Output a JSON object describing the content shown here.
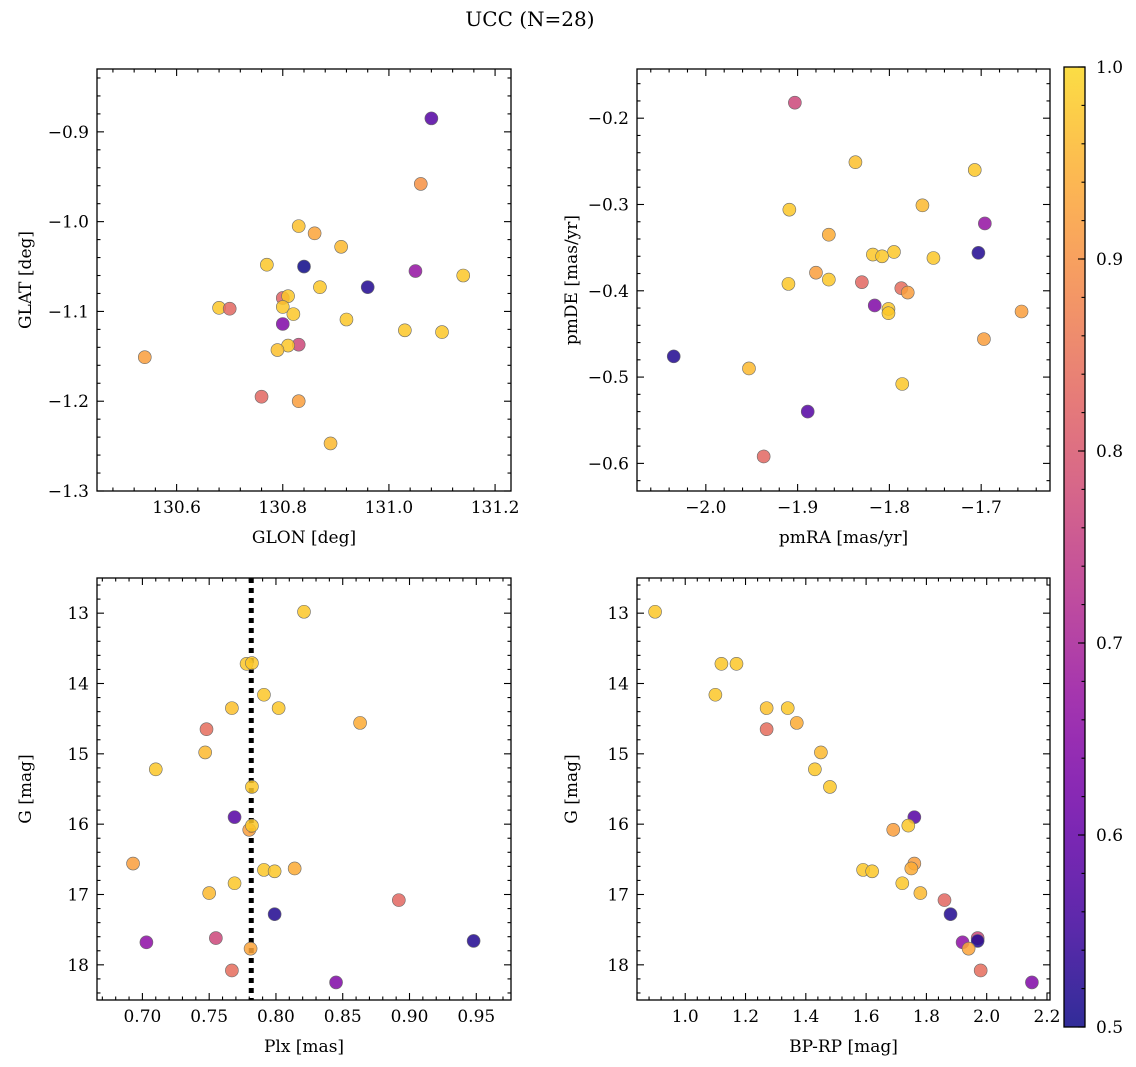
{
  "figure": {
    "title": "UCC (N=28)"
  },
  "colorbar": {
    "range": [
      0.5,
      1.0
    ],
    "ticks": [
      0.5,
      0.6,
      0.7,
      0.8,
      0.9,
      1.0
    ],
    "tick_labels": [
      "0.5",
      "0.6",
      "0.7",
      "0.8",
      "0.9",
      "1.0"
    ],
    "colormap": "plasma",
    "colormap_range": [
      0.0,
      0.92
    ]
  },
  "chart_data": [
    {
      "type": "scatter",
      "id": "glon-glat",
      "xlabel": "GLON [deg]",
      "ylabel": "GLAT [deg]",
      "xlim": [
        130.45,
        131.23
      ],
      "ylim": [
        -1.3,
        -0.83
      ],
      "y_inverted": false,
      "xticks": [
        130.6,
        130.8,
        131.0,
        131.2
      ],
      "xtick_labels": [
        "130.6",
        "130.8",
        "131.0",
        "131.2"
      ],
      "yticks": [
        -0.9,
        -1.0,
        -1.1,
        -1.2,
        -1.3
      ],
      "ytick_labels": [
        "−0.9",
        "−1.0",
        "−1.1",
        "−1.2",
        "−1.3"
      ],
      "points": [
        {
          "x": 131.08,
          "y": -0.885,
          "c": 0.58
        },
        {
          "x": 131.06,
          "y": -0.958,
          "c": 0.9
        },
        {
          "x": 130.83,
          "y": -1.005,
          "c": 0.97
        },
        {
          "x": 130.86,
          "y": -1.013,
          "c": 0.93
        },
        {
          "x": 130.91,
          "y": -1.028,
          "c": 0.96
        },
        {
          "x": 130.77,
          "y": -1.048,
          "c": 0.98
        },
        {
          "x": 130.84,
          "y": -1.05,
          "c": 0.5
        },
        {
          "x": 131.05,
          "y": -1.055,
          "c": 0.67
        },
        {
          "x": 131.14,
          "y": -1.06,
          "c": 0.98
        },
        {
          "x": 130.96,
          "y": -1.073,
          "c": 0.52
        },
        {
          "x": 130.87,
          "y": -1.073,
          "c": 0.98
        },
        {
          "x": 130.8,
          "y": -1.085,
          "c": 0.82
        },
        {
          "x": 130.81,
          "y": -1.083,
          "c": 0.98
        },
        {
          "x": 130.68,
          "y": -1.096,
          "c": 0.98
        },
        {
          "x": 130.7,
          "y": -1.097,
          "c": 0.83
        },
        {
          "x": 130.8,
          "y": -1.095,
          "c": 0.98
        },
        {
          "x": 130.82,
          "y": -1.103,
          "c": 0.98
        },
        {
          "x": 130.92,
          "y": -1.109,
          "c": 0.98
        },
        {
          "x": 130.8,
          "y": -1.114,
          "c": 0.64
        },
        {
          "x": 131.03,
          "y": -1.121,
          "c": 0.98
        },
        {
          "x": 131.1,
          "y": -1.123,
          "c": 0.98
        },
        {
          "x": 130.83,
          "y": -1.137,
          "c": 0.77
        },
        {
          "x": 130.81,
          "y": -1.138,
          "c": 0.98
        },
        {
          "x": 130.79,
          "y": -1.143,
          "c": 0.97
        },
        {
          "x": 130.54,
          "y": -1.151,
          "c": 0.92
        },
        {
          "x": 130.76,
          "y": -1.195,
          "c": 0.83
        },
        {
          "x": 130.83,
          "y": -1.2,
          "c": 0.92
        },
        {
          "x": 130.89,
          "y": -1.247,
          "c": 0.96
        }
      ]
    },
    {
      "type": "scatter",
      "id": "pmra-pmde",
      "xlabel": "pmRA [mas/yr]",
      "ylabel": "pmDE [mas/yr]",
      "xlim": [
        -2.075,
        -1.625
      ],
      "ylim": [
        -0.632,
        -0.143
      ],
      "y_inverted": false,
      "xticks": [
        -2.0,
        -1.9,
        -1.8,
        -1.7
      ],
      "xtick_labels": [
        "−2.0",
        "−1.9",
        "−1.8",
        "−1.7"
      ],
      "yticks": [
        -0.2,
        -0.3,
        -0.4,
        -0.5,
        -0.6
      ],
      "ytick_labels": [
        "−0.2",
        "−0.3",
        "−0.4",
        "−0.5",
        "−0.6"
      ],
      "points": [
        {
          "x": -1.903,
          "y": -0.182,
          "c": 0.77
        },
        {
          "x": -1.837,
          "y": -0.251,
          "c": 0.97
        },
        {
          "x": -1.707,
          "y": -0.26,
          "c": 0.98
        },
        {
          "x": -1.764,
          "y": -0.301,
          "c": 0.96
        },
        {
          "x": -1.909,
          "y": -0.306,
          "c": 0.98
        },
        {
          "x": -1.696,
          "y": -0.322,
          "c": 0.67
        },
        {
          "x": -1.866,
          "y": -0.335,
          "c": 0.94
        },
        {
          "x": -1.795,
          "y": -0.355,
          "c": 0.98
        },
        {
          "x": -1.703,
          "y": -0.356,
          "c": 0.52
        },
        {
          "x": -1.818,
          "y": -0.358,
          "c": 0.98
        },
        {
          "x": -1.808,
          "y": -0.36,
          "c": 0.98
        },
        {
          "x": -1.752,
          "y": -0.362,
          "c": 0.98
        },
        {
          "x": -1.88,
          "y": -0.379,
          "c": 0.92
        },
        {
          "x": -1.866,
          "y": -0.387,
          "c": 0.98
        },
        {
          "x": -1.83,
          "y": -0.39,
          "c": 0.83
        },
        {
          "x": -1.91,
          "y": -0.392,
          "c": 0.98
        },
        {
          "x": -1.787,
          "y": -0.397,
          "c": 0.84
        },
        {
          "x": -1.78,
          "y": -0.402,
          "c": 0.92
        },
        {
          "x": -1.816,
          "y": -0.417,
          "c": 0.64
        },
        {
          "x": -1.801,
          "y": -0.421,
          "c": 0.98
        },
        {
          "x": -1.801,
          "y": -0.426,
          "c": 0.98
        },
        {
          "x": -1.656,
          "y": -0.424,
          "c": 0.92
        },
        {
          "x": -1.697,
          "y": -0.456,
          "c": 0.92
        },
        {
          "x": -2.035,
          "y": -0.476,
          "c": 0.52
        },
        {
          "x": -1.953,
          "y": -0.49,
          "c": 0.96
        },
        {
          "x": -1.786,
          "y": -0.508,
          "c": 0.98
        },
        {
          "x": -1.889,
          "y": -0.54,
          "c": 0.58
        },
        {
          "x": -1.937,
          "y": -0.592,
          "c": 0.83
        }
      ]
    },
    {
      "type": "scatter",
      "id": "plx-g",
      "xlabel": "Plx [mas]",
      "ylabel": "G [mag]",
      "xlim": [
        0.666,
        0.976
      ],
      "ylim": [
        12.5,
        18.5
      ],
      "y_inverted": true,
      "xticks": [
        0.7,
        0.75,
        0.8,
        0.85,
        0.9,
        0.95
      ],
      "xtick_labels": [
        "0.70",
        "0.75",
        "0.80",
        "0.85",
        "0.90",
        "0.95"
      ],
      "yticks": [
        13,
        14,
        15,
        16,
        17,
        18
      ],
      "ytick_labels": [
        "13",
        "14",
        "15",
        "16",
        "17",
        "18"
      ],
      "vline": 0.7815,
      "points": [
        {
          "x": 0.821,
          "y": 12.98,
          "c": 0.98
        },
        {
          "x": 0.778,
          "y": 13.72,
          "c": 0.98
        },
        {
          "x": 0.782,
          "y": 13.71,
          "c": 0.98
        },
        {
          "x": 0.791,
          "y": 14.16,
          "c": 0.98
        },
        {
          "x": 0.767,
          "y": 14.35,
          "c": 0.97
        },
        {
          "x": 0.802,
          "y": 14.35,
          "c": 0.98
        },
        {
          "x": 0.863,
          "y": 14.56,
          "c": 0.94
        },
        {
          "x": 0.748,
          "y": 14.65,
          "c": 0.84
        },
        {
          "x": 0.747,
          "y": 14.98,
          "c": 0.96
        },
        {
          "x": 0.71,
          "y": 15.22,
          "c": 0.98
        },
        {
          "x": 0.782,
          "y": 15.47,
          "c": 0.98
        },
        {
          "x": 0.769,
          "y": 15.9,
          "c": 0.58
        },
        {
          "x": 0.78,
          "y": 16.08,
          "c": 0.92
        },
        {
          "x": 0.782,
          "y": 16.02,
          "c": 0.98
        },
        {
          "x": 0.693,
          "y": 16.56,
          "c": 0.92
        },
        {
          "x": 0.791,
          "y": 16.65,
          "c": 0.98
        },
        {
          "x": 0.799,
          "y": 16.67,
          "c": 0.98
        },
        {
          "x": 0.814,
          "y": 16.63,
          "c": 0.94
        },
        {
          "x": 0.769,
          "y": 16.84,
          "c": 0.98
        },
        {
          "x": 0.75,
          "y": 16.98,
          "c": 0.96
        },
        {
          "x": 0.892,
          "y": 17.08,
          "c": 0.83
        },
        {
          "x": 0.799,
          "y": 17.28,
          "c": 0.52
        },
        {
          "x": 0.755,
          "y": 17.62,
          "c": 0.77
        },
        {
          "x": 0.703,
          "y": 17.68,
          "c": 0.66
        },
        {
          "x": 0.948,
          "y": 17.66,
          "c": 0.52
        },
        {
          "x": 0.781,
          "y": 17.77,
          "c": 0.93
        },
        {
          "x": 0.767,
          "y": 18.08,
          "c": 0.84
        },
        {
          "x": 0.845,
          "y": 18.25,
          "c": 0.64
        }
      ]
    },
    {
      "type": "scatter",
      "id": "bprp-g",
      "xlabel": "BP-RP [mag]",
      "ylabel": "G [mag]",
      "xlim": [
        0.84,
        2.21
      ],
      "ylim": [
        12.5,
        18.5
      ],
      "y_inverted": true,
      "xticks": [
        1.0,
        1.2,
        1.4,
        1.6,
        1.8,
        2.0,
        2.2
      ],
      "xtick_labels": [
        "1.0",
        "1.2",
        "1.4",
        "1.6",
        "1.8",
        "2.0",
        "2.2"
      ],
      "yticks": [
        13,
        14,
        15,
        16,
        17,
        18
      ],
      "ytick_labels": [
        "13",
        "14",
        "15",
        "16",
        "17",
        "18"
      ],
      "points": [
        {
          "x": 0.9,
          "y": 12.98,
          "c": 0.98
        },
        {
          "x": 1.12,
          "y": 13.72,
          "c": 0.98
        },
        {
          "x": 1.17,
          "y": 13.72,
          "c": 0.98
        },
        {
          "x": 1.1,
          "y": 14.16,
          "c": 0.98
        },
        {
          "x": 1.27,
          "y": 14.35,
          "c": 0.97
        },
        {
          "x": 1.34,
          "y": 14.35,
          "c": 0.98
        },
        {
          "x": 1.37,
          "y": 14.56,
          "c": 0.94
        },
        {
          "x": 1.27,
          "y": 14.65,
          "c": 0.84
        },
        {
          "x": 1.45,
          "y": 14.98,
          "c": 0.96
        },
        {
          "x": 1.43,
          "y": 15.22,
          "c": 0.98
        },
        {
          "x": 1.48,
          "y": 15.47,
          "c": 0.98
        },
        {
          "x": 1.76,
          "y": 15.9,
          "c": 0.58
        },
        {
          "x": 1.69,
          "y": 16.08,
          "c": 0.92
        },
        {
          "x": 1.74,
          "y": 16.02,
          "c": 0.98
        },
        {
          "x": 1.76,
          "y": 16.56,
          "c": 0.92
        },
        {
          "x": 1.75,
          "y": 16.63,
          "c": 0.94
        },
        {
          "x": 1.59,
          "y": 16.65,
          "c": 0.98
        },
        {
          "x": 1.62,
          "y": 16.67,
          "c": 0.98
        },
        {
          "x": 1.72,
          "y": 16.84,
          "c": 0.98
        },
        {
          "x": 1.78,
          "y": 16.98,
          "c": 0.96
        },
        {
          "x": 1.86,
          "y": 17.08,
          "c": 0.83
        },
        {
          "x": 1.88,
          "y": 17.28,
          "c": 0.52
        },
        {
          "x": 1.97,
          "y": 17.62,
          "c": 0.77
        },
        {
          "x": 1.92,
          "y": 17.68,
          "c": 0.66
        },
        {
          "x": 1.97,
          "y": 17.66,
          "c": 0.52
        },
        {
          "x": 1.94,
          "y": 17.77,
          "c": 0.93
        },
        {
          "x": 1.98,
          "y": 18.08,
          "c": 0.84
        },
        {
          "x": 2.15,
          "y": 18.25,
          "c": 0.64
        }
      ]
    }
  ]
}
